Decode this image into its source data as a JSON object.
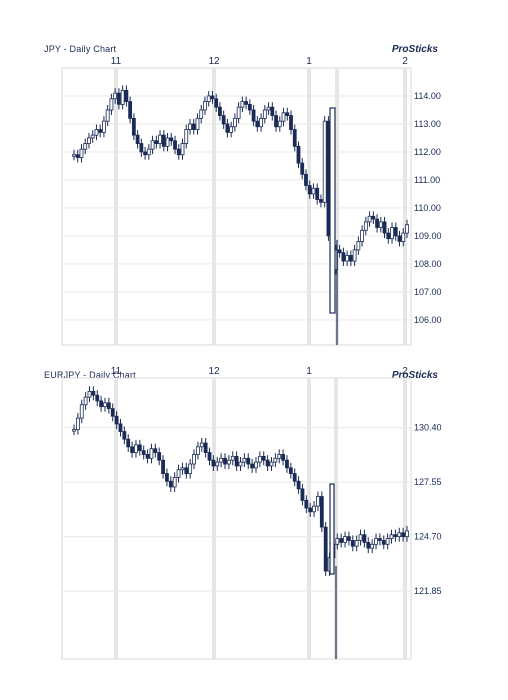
{
  "charts": [
    {
      "title": "JPY - Daily Chart",
      "brand": "ProSticks"
    },
    {
      "title": "EURJPY - Daily Chart",
      "brand": "ProSticks"
    }
  ],
  "chart_data": [
    {
      "type": "candlestick",
      "title": "JPY - Daily Chart",
      "brand": "ProSticks",
      "x_ticks": [
        "11",
        "12",
        "1",
        "2"
      ],
      "y_ticks": [
        114.0,
        113.0,
        112.0,
        111.0,
        110.0,
        109.0,
        108.0,
        107.0,
        106.0
      ],
      "y_tick_labels": [
        "114.00",
        "113.00",
        "112.00",
        "111.00",
        "110.00",
        "109.00",
        "108.00",
        "107.00",
        "106.00"
      ],
      "ylim": [
        105.1,
        115.0
      ],
      "grid": true,
      "closes": [
        111.9,
        111.8,
        112.1,
        112.3,
        112.5,
        112.6,
        112.8,
        112.7,
        113.1,
        113.5,
        113.9,
        114.1,
        113.7,
        114.2,
        113.8,
        113.2,
        112.6,
        112.3,
        112.0,
        111.9,
        112.1,
        112.4,
        112.3,
        112.6,
        112.2,
        112.5,
        112.4,
        112.1,
        111.9,
        112.3,
        112.8,
        113.0,
        112.8,
        113.2,
        113.5,
        113.8,
        114.0,
        113.9,
        113.6,
        113.3,
        113.0,
        112.7,
        112.9,
        113.2,
        113.6,
        113.8,
        113.7,
        113.5,
        113.1,
        112.9,
        113.2,
        113.5,
        113.6,
        113.3,
        112.9,
        113.1,
        113.4,
        113.3,
        112.8,
        112.2,
        111.6,
        111.2,
        110.8,
        110.5,
        110.7,
        110.3,
        110.2,
        113.1,
        109.0,
        107.8,
        108.5,
        108.4,
        108.1,
        108.3,
        108.1,
        108.5,
        108.8,
        109.2,
        109.5,
        109.7,
        109.6,
        109.3,
        109.5,
        109.1,
        108.9,
        109.3,
        109.0,
        108.8,
        109.1,
        109.4
      ]
    },
    {
      "type": "candlestick",
      "title": "EURJPY - Daily Chart",
      "brand": "ProSticks",
      "x_ticks": [
        "11",
        "12",
        "1",
        "2"
      ],
      "y_ticks": [
        130.4,
        127.55,
        124.7,
        121.85
      ],
      "y_tick_labels": [
        "130.40",
        "127.55",
        "124.70",
        "121.85"
      ],
      "ylim": [
        118.3,
        133.0
      ],
      "grid": true,
      "closes": [
        130.3,
        130.9,
        131.6,
        132.0,
        132.3,
        132.1,
        131.8,
        131.5,
        131.7,
        131.4,
        131.0,
        130.6,
        130.2,
        129.8,
        129.4,
        129.1,
        129.5,
        129.2,
        129.0,
        128.8,
        129.3,
        129.1,
        128.7,
        128.0,
        127.6,
        127.3,
        127.8,
        128.2,
        128.3,
        128.0,
        128.5,
        129.0,
        129.4,
        129.6,
        129.1,
        128.7,
        128.4,
        128.6,
        128.8,
        128.5,
        128.7,
        128.9,
        128.4,
        128.6,
        128.8,
        128.5,
        128.3,
        128.6,
        128.9,
        128.7,
        128.4,
        128.6,
        128.8,
        129.0,
        128.7,
        128.3,
        128.0,
        127.6,
        127.2,
        126.6,
        126.2,
        126.0,
        126.3,
        126.8,
        125.2,
        122.9,
        123.6,
        124.3,
        124.6,
        124.4,
        124.7,
        124.5,
        124.2,
        124.5,
        124.8,
        124.4,
        124.1,
        124.3,
        124.6,
        124.5,
        124.3,
        124.6,
        124.8,
        124.7,
        124.9,
        124.7,
        125.0
      ]
    }
  ]
}
